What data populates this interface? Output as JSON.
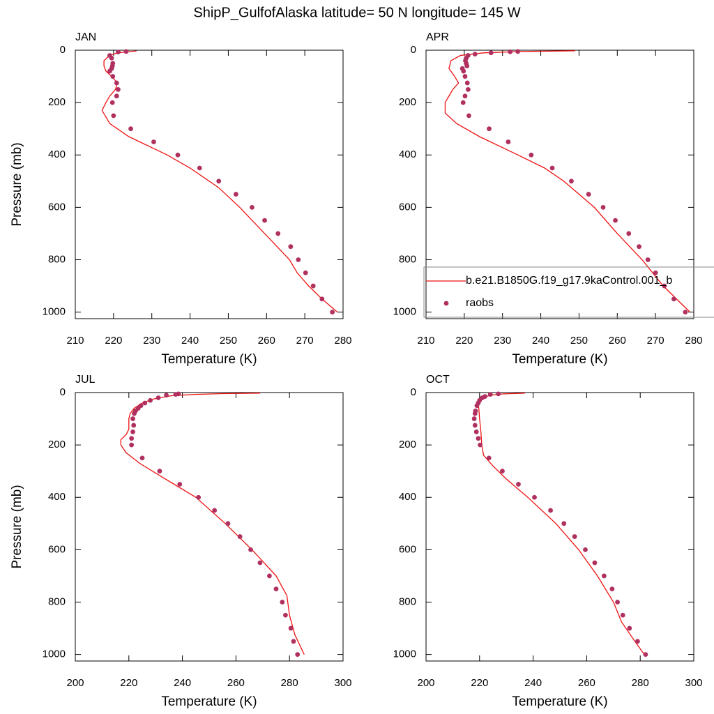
{
  "title": "ShipP_GulfofAlaska  latitude= 50 N longitude= 145 W",
  "chart_data": [
    {
      "type": "line",
      "title": "JAN",
      "xlabel": "Temperature (K)",
      "ylabel": "Pressure (mb)",
      "xlim": [
        210,
        280
      ],
      "xticks": [
        210,
        220,
        230,
        240,
        250,
        260,
        270,
        280
      ],
      "ylim": [
        0,
        1025
      ],
      "yticks": [
        0,
        200,
        400,
        600,
        800,
        1000
      ],
      "yreverse": true,
      "series": [
        {
          "style": "line",
          "color": "#ee1111",
          "x": [
            226,
            221,
            219,
            217.5,
            217.5,
            218,
            219.5,
            221,
            220.5,
            219,
            218,
            217,
            219,
            224,
            234,
            240,
            247.5,
            253,
            259.5,
            266,
            268,
            271,
            274.5,
            278.5
          ],
          "y": [
            3,
            10,
            20,
            40,
            60,
            80,
            100,
            125,
            150,
            175,
            200,
            230,
            280,
            330,
            400,
            450,
            525,
            600,
            700,
            800,
            850,
            900,
            950,
            1000
          ]
        },
        {
          "style": "markers",
          "color": "#b03060",
          "x": [
            223.3,
            221.2,
            219,
            219.5,
            219.8,
            219.7,
            219.5,
            219,
            219.8,
            220.8,
            221.2,
            220.8,
            219.7,
            220,
            224.5,
            230.5,
            236.8,
            242.5,
            247.5,
            252,
            256.2,
            259.5,
            263,
            266.3,
            268.3,
            270.2,
            272.2,
            274.5,
            277.2
          ],
          "y": [
            5,
            7,
            20,
            30,
            50,
            60,
            70,
            80,
            100,
            125,
            150,
            175,
            200,
            250,
            300,
            350,
            400,
            450,
            500,
            550,
            600,
            650,
            700,
            750,
            800,
            850,
            900,
            950,
            1000
          ]
        }
      ]
    },
    {
      "type": "line",
      "title": "APR",
      "xlabel": "Temperature (K)",
      "xlim": [
        210,
        280
      ],
      "xticks": [
        210,
        220,
        230,
        240,
        250,
        260,
        270,
        280
      ],
      "ylim": [
        0,
        1025
      ],
      "yticks": [
        0,
        200,
        400,
        600,
        800,
        1000
      ],
      "yreverse": true,
      "legend": "right",
      "series": [
        {
          "name": "b.e21.B1850G.f19_g17.9kaControl.001_b",
          "style": "line",
          "color": "#ee1111",
          "x": [
            249,
            235,
            225,
            219,
            216.5,
            216,
            217.5,
            218.5,
            217,
            215,
            215,
            218,
            224,
            234,
            241,
            246,
            254,
            260,
            266.5,
            272,
            279
          ],
          "y": [
            2,
            5,
            10,
            20,
            40,
            70,
            100,
            125,
            150,
            200,
            240,
            280,
            330,
            400,
            450,
            500,
            600,
            700,
            800,
            900,
            1000
          ]
        },
        {
          "name": "raobs",
          "style": "markers",
          "color": "#b03060",
          "x": [
            234,
            232,
            227,
            222.8,
            221,
            220.5,
            220.3,
            220.5,
            220.7,
            219.5,
            219.8,
            220.2,
            220.8,
            221,
            220.2,
            219.7,
            221.2,
            226.5,
            231.5,
            237.5,
            243,
            248,
            252.5,
            256.3,
            259.5,
            263,
            265.7,
            268,
            270,
            272.3,
            274.8,
            277.8
          ],
          "y": [
            5,
            6,
            10,
            15,
            20,
            30,
            40,
            50,
            60,
            70,
            80,
            100,
            125,
            150,
            175,
            200,
            250,
            300,
            350,
            400,
            450,
            500,
            550,
            600,
            650,
            700,
            750,
            800,
            850,
            900,
            950,
            1000
          ]
        }
      ]
    },
    {
      "type": "line",
      "title": "JUL",
      "xlabel": "Temperature (K)",
      "ylabel": "Pressure (mb)",
      "xlim": [
        200,
        300
      ],
      "xticks": [
        200,
        220,
        240,
        260,
        280,
        300
      ],
      "ylim": [
        0,
        1025
      ],
      "yticks": [
        0,
        200,
        400,
        600,
        800,
        1000
      ],
      "yreverse": true,
      "series": [
        {
          "style": "line",
          "color": "#ee1111",
          "x": [
            269,
            255,
            245,
            236,
            229,
            225,
            222,
            220.5,
            220,
            220,
            219,
            217,
            217,
            219,
            224,
            232,
            245,
            256,
            266,
            275,
            279,
            280,
            282,
            285.5
          ],
          "y": [
            2,
            4,
            7,
            12,
            25,
            40,
            60,
            80,
            100,
            140,
            160,
            180,
            200,
            230,
            270,
            320,
            400,
            500,
            600,
            700,
            775,
            850,
            925,
            1000
          ]
        },
        {
          "style": "markers",
          "color": "#b03060",
          "x": [
            238.5,
            237.5,
            234,
            231,
            228,
            226,
            224.5,
            223.5,
            222.5,
            222,
            221.5,
            221.8,
            221.5,
            221,
            221,
            225,
            231.5,
            239,
            246,
            252,
            257,
            261.5,
            265.5,
            269,
            272.5,
            275,
            277.3,
            278.5,
            280.5,
            281.5,
            283
          ],
          "y": [
            5,
            7,
            10,
            20,
            30,
            40,
            50,
            60,
            70,
            80,
            100,
            125,
            150,
            175,
            200,
            250,
            300,
            350,
            400,
            450,
            500,
            550,
            600,
            650,
            700,
            750,
            800,
            850,
            900,
            950,
            1000
          ]
        }
      ]
    },
    {
      "type": "line",
      "title": "OCT",
      "xlabel": "Temperature (K)",
      "xlim": [
        200,
        300
      ],
      "xticks": [
        200,
        220,
        240,
        260,
        280,
        300
      ],
      "ylim": [
        0,
        1025
      ],
      "yticks": [
        0,
        200,
        400,
        600,
        800,
        1000
      ],
      "yreverse": true,
      "series": [
        {
          "style": "line",
          "color": "#ee1111",
          "x": [
            237,
            229,
            224,
            221,
            219.5,
            219.8,
            220,
            220.5,
            220.8,
            221.5,
            225,
            230,
            238,
            248.5,
            257,
            264,
            270,
            273,
            278,
            281.5
          ],
          "y": [
            2,
            5,
            10,
            20,
            40,
            70,
            100,
            150,
            200,
            240,
            280,
            330,
            400,
            500,
            600,
            700,
            800,
            875,
            950,
            1000
          ]
        },
        {
          "style": "markers",
          "color": "#b03060",
          "x": [
            227,
            224,
            222,
            221,
            220,
            219.5,
            219,
            218.5,
            218.3,
            218,
            218.3,
            218.8,
            219.5,
            220.2,
            223.5,
            228.5,
            234.5,
            240.5,
            246.5,
            251.5,
            255.5,
            259.5,
            263,
            266.5,
            269.5,
            271.5,
            273.5,
            276,
            279,
            282
          ],
          "y": [
            5,
            7,
            15,
            20,
            30,
            40,
            50,
            70,
            80,
            100,
            125,
            150,
            175,
            200,
            250,
            300,
            350,
            400,
            450,
            500,
            550,
            600,
            650,
            700,
            750,
            800,
            850,
            900,
            950,
            1000
          ]
        }
      ]
    }
  ]
}
